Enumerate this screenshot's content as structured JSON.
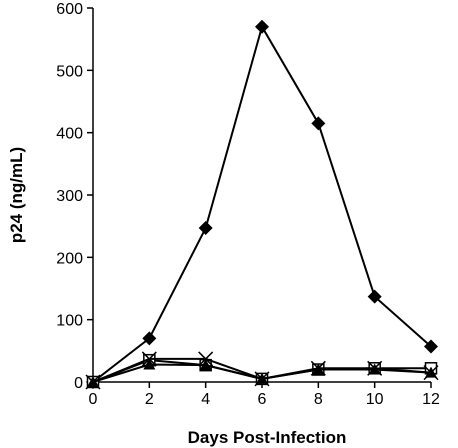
{
  "chart_data": {
    "type": "line",
    "title": "",
    "xlabel": "Days Post-Infection",
    "ylabel": "p24 (ng/mL)",
    "xlim": [
      0,
      12
    ],
    "ylim": [
      0,
      600
    ],
    "xticks": [
      0,
      2,
      4,
      6,
      8,
      10,
      12
    ],
    "yticks": [
      0,
      100,
      200,
      300,
      400,
      500,
      600
    ],
    "grid": false,
    "legend": "none",
    "x": [
      0,
      2,
      4,
      6,
      8,
      10,
      12
    ],
    "series": [
      {
        "marker": "filled-diamond",
        "color": "#000000",
        "values": [
          0,
          70,
          247,
          570,
          415,
          137,
          57
        ]
      },
      {
        "marker": "open-square",
        "color": "#000000",
        "values": [
          0,
          35,
          27,
          5,
          20,
          22,
          22
        ]
      },
      {
        "marker": "filled-triangle",
        "color": "#000000",
        "values": [
          0,
          28,
          27,
          5,
          20,
          20,
          15
        ]
      },
      {
        "marker": "x-cross",
        "color": "#000000",
        "values": [
          0,
          37,
          37,
          5,
          22,
          22,
          15
        ]
      }
    ]
  }
}
